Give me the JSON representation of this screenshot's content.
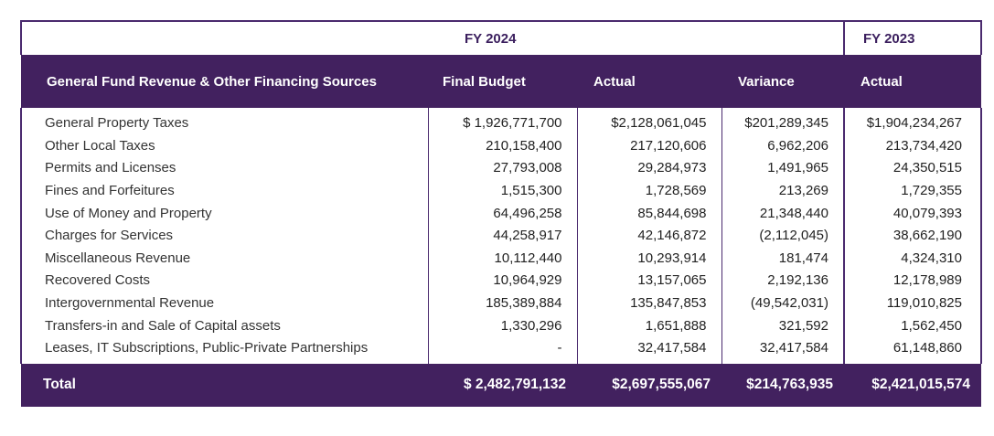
{
  "years": {
    "fy2024": "FY 2024",
    "fy2023": "FY 2023"
  },
  "headers": {
    "label": "General Fund Revenue & Other Financing Sources",
    "final_budget": "Final Budget",
    "actual": "Actual",
    "variance": "Variance",
    "actual_2023": "Actual"
  },
  "rows": [
    {
      "label": "General Property Taxes",
      "budget": "$ 1,926,771,700",
      "actual": "$2,128,061,045",
      "variance": "$201,289,345",
      "actual2023": "$1,904,234,267"
    },
    {
      "label": "Other Local Taxes",
      "budget": "210,158,400",
      "actual": "217,120,606",
      "variance": "6,962,206",
      "actual2023": "213,734,420"
    },
    {
      "label": "Permits and Licenses",
      "budget": "27,793,008",
      "actual": "29,284,973",
      "variance": "1,491,965",
      "actual2023": "24,350,515"
    },
    {
      "label": "Fines and Forfeitures",
      "budget": "1,515,300",
      "actual": "1,728,569",
      "variance": "213,269",
      "actual2023": "1,729,355"
    },
    {
      "label": "Use of Money and Property",
      "budget": "64,496,258",
      "actual": "85,844,698",
      "variance": "21,348,440",
      "actual2023": "40,079,393"
    },
    {
      "label": "Charges for Services",
      "budget": "44,258,917",
      "actual": "42,146,872",
      "variance": "(2,112,045)",
      "actual2023": "38,662,190"
    },
    {
      "label": "Miscellaneous Revenue",
      "budget": "10,112,440",
      "actual": "10,293,914",
      "variance": "181,474",
      "actual2023": "4,324,310"
    },
    {
      "label": "Recovered Costs",
      "budget": "10,964,929",
      "actual": "13,157,065",
      "variance": "2,192,136",
      "actual2023": "12,178,989"
    },
    {
      "label": "Intergovernmental Revenue",
      "budget": "185,389,884",
      "actual": "135,847,853",
      "variance": "(49,542,031)",
      "actual2023": "119,010,825"
    },
    {
      "label": "Transfers-in and Sale of Capital assets",
      "budget": "1,330,296",
      "actual": "1,651,888",
      "variance": "321,592",
      "actual2023": "1,562,450"
    },
    {
      "label": "Leases, IT Subscriptions, Public-Private Partnerships",
      "budget": "-",
      "actual": "32,417,584",
      "variance": "32,417,584",
      "actual2023": "61,148,860"
    }
  ],
  "total": {
    "label": "Total",
    "budget": "$ 2,482,791,132",
    "actual": "$2,697,555,067",
    "variance": "$214,763,935",
    "actual2023": "$2,421,015,574"
  }
}
